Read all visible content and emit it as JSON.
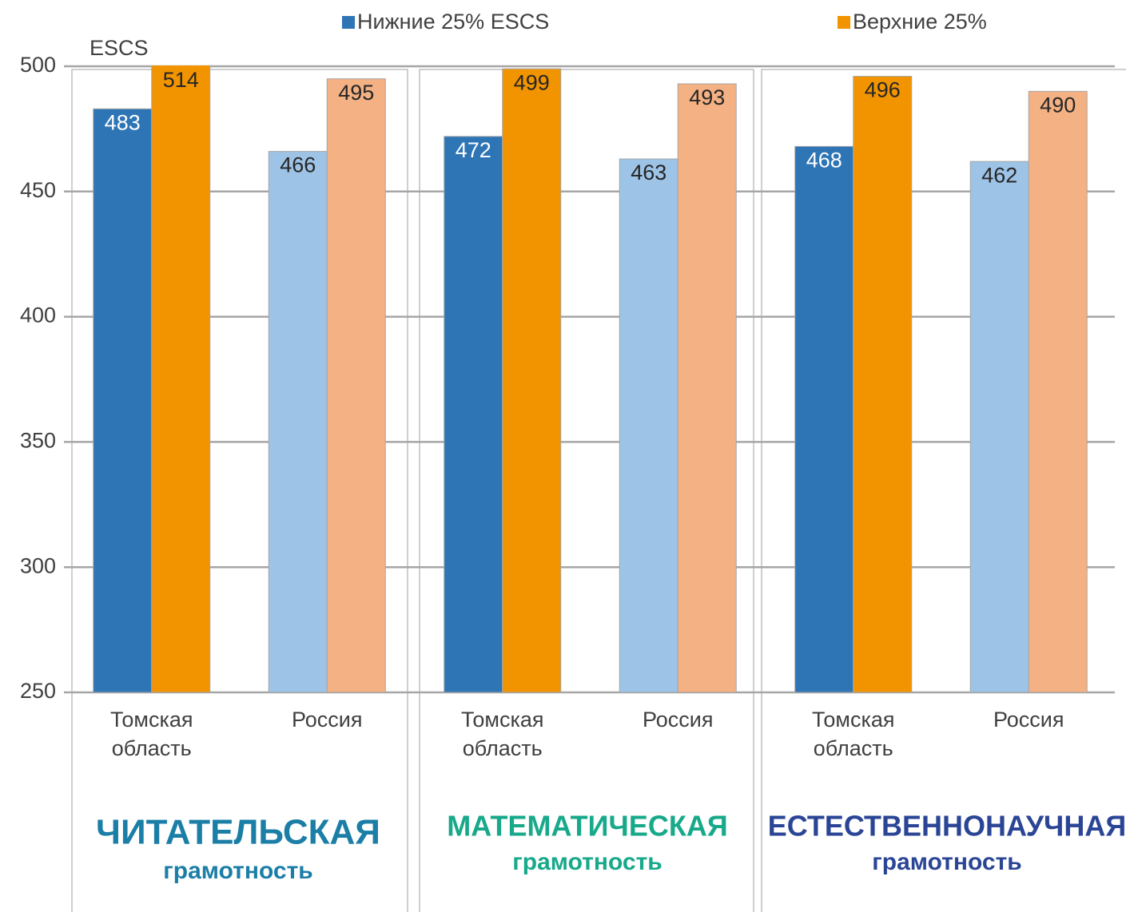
{
  "chart_data": {
    "type": "bar",
    "legend_note": "ESCS",
    "categories": [
      "Томская область",
      "Россия",
      "Томская область",
      "Россия",
      "Томская область",
      "Россия"
    ],
    "series": [
      {
        "name": "Нижние 25% ESCS",
        "color": "#2e75b6",
        "colors": [
          "#2e75b6",
          "#9dc3e6",
          "#2e75b6",
          "#9dc3e6",
          "#2e75b6",
          "#9dc3e6"
        ],
        "values": [
          483,
          466,
          472,
          463,
          468,
          462
        ]
      },
      {
        "name": "Верхние 25%",
        "color": "#f29400",
        "colors": [
          "#f29400",
          "#f4b183",
          "#f29400",
          "#f4b183",
          "#f29400",
          "#f4b183"
        ],
        "values": [
          514,
          495,
          499,
          493,
          496,
          490
        ]
      }
    ],
    "groups": [
      {
        "title": "ЧИТАТЕЛЬСКАЯ",
        "subtitle": "грамотность",
        "color": "#1b7ea6"
      },
      {
        "title": "МАТЕМАТИЧЕСКАЯ",
        "subtitle": "грамотность",
        "color": "#17a98a"
      },
      {
        "title": "ЕСТЕСТВЕННОНАУЧНАЯ",
        "subtitle": "грамотность",
        "color": "#2b4596"
      }
    ],
    "ylim": [
      250,
      500
    ],
    "yticks": [
      250,
      300,
      350,
      400,
      450,
      500
    ],
    "grid": true
  }
}
